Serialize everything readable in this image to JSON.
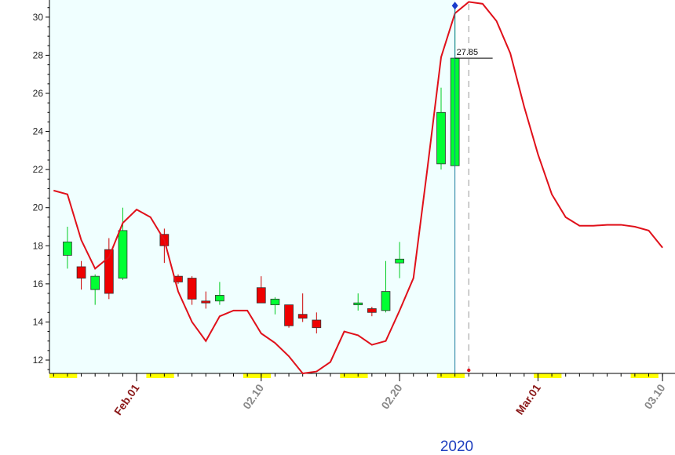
{
  "chart_data": {
    "type": "candlestick",
    "year_label": "2020",
    "ylim": [
      11.3,
      30.9
    ],
    "y_ticks": [
      12,
      14,
      16,
      18,
      20,
      22,
      24,
      26,
      28,
      30
    ],
    "x_tick_labels": [
      {
        "label": "Feb.01",
        "day": 6,
        "color": "#8b1a1a",
        "bold": true
      },
      {
        "label": "02.10",
        "day": 15,
        "color": "#888888",
        "bold": false
      },
      {
        "label": "02.20",
        "day": 25,
        "color": "#888888",
        "bold": false
      },
      {
        "label": "Mar.01",
        "day": 35,
        "color": "#8b1a1a",
        "bold": false
      },
      {
        "label": "03.10",
        "day": 44,
        "color": "#888888",
        "bold": false
      }
    ],
    "x_range_days": [
      0,
      45
    ],
    "last_value_label": "27.85",
    "candles": [
      {
        "day": 1,
        "open": 17.5,
        "high": 19.0,
        "low": 16.8,
        "close": 18.2
      },
      {
        "day": 2,
        "open": 16.9,
        "high": 17.2,
        "low": 15.7,
        "close": 16.3
      },
      {
        "day": 3,
        "open": 15.7,
        "high": 16.5,
        "low": 14.9,
        "close": 16.4
      },
      {
        "day": 4,
        "open": 17.8,
        "high": 18.4,
        "low": 15.2,
        "close": 15.5
      },
      {
        "day": 5,
        "open": 16.3,
        "high": 20.0,
        "low": 16.2,
        "close": 18.8
      },
      {
        "day": 8,
        "open": 18.6,
        "high": 18.9,
        "low": 17.1,
        "close": 18.0
      },
      {
        "day": 9,
        "open": 16.4,
        "high": 16.5,
        "low": 16.0,
        "close": 16.1
      },
      {
        "day": 10,
        "open": 16.3,
        "high": 16.4,
        "low": 14.9,
        "close": 15.2
      },
      {
        "day": 11,
        "open": 15.1,
        "high": 15.6,
        "low": 14.7,
        "close": 15.0
      },
      {
        "day": 12,
        "open": 15.1,
        "high": 16.1,
        "low": 14.9,
        "close": 15.4
      },
      {
        "day": 15,
        "open": 15.8,
        "high": 16.4,
        "low": 15.0,
        "close": 15.0
      },
      {
        "day": 16,
        "open": 14.9,
        "high": 15.3,
        "low": 14.4,
        "close": 15.2
      },
      {
        "day": 17,
        "open": 14.9,
        "high": 14.9,
        "low": 13.7,
        "close": 13.8
      },
      {
        "day": 18,
        "open": 14.4,
        "high": 15.5,
        "low": 14.0,
        "close": 14.2
      },
      {
        "day": 19,
        "open": 14.1,
        "high": 14.5,
        "low": 13.4,
        "close": 13.7
      },
      {
        "day": 22,
        "open": 14.9,
        "high": 15.5,
        "low": 14.6,
        "close": 15.0
      },
      {
        "day": 23,
        "open": 14.7,
        "high": 14.8,
        "low": 14.3,
        "close": 14.5
      },
      {
        "day": 24,
        "open": 14.6,
        "high": 17.2,
        "low": 14.5,
        "close": 15.6
      },
      {
        "day": 25,
        "open": 17.1,
        "high": 18.2,
        "low": 16.3,
        "close": 17.3
      },
      {
        "day": 28,
        "open": 22.3,
        "high": 26.3,
        "low": 22.0,
        "close": 25.0
      },
      {
        "day": 29,
        "open": 22.2,
        "high": 30.6,
        "low": 22.2,
        "close": 27.85
      }
    ],
    "indicator_line": {
      "color": "#e0101a",
      "points": [
        [
          0,
          20.9
        ],
        [
          1,
          20.7
        ],
        [
          2,
          18.3
        ],
        [
          3,
          16.8
        ],
        [
          4,
          17.4
        ],
        [
          5,
          19.2
        ],
        [
          6,
          19.9
        ],
        [
          7,
          19.5
        ],
        [
          8,
          18.3
        ],
        [
          9,
          15.6
        ],
        [
          10,
          14.0
        ],
        [
          11,
          13.0
        ],
        [
          12,
          14.3
        ],
        [
          13,
          14.6
        ],
        [
          14,
          14.6
        ],
        [
          15,
          13.4
        ],
        [
          16,
          12.9
        ],
        [
          17,
          12.2
        ],
        [
          18,
          11.3
        ],
        [
          19,
          11.4
        ],
        [
          20,
          11.9
        ],
        [
          21,
          13.5
        ],
        [
          22,
          13.3
        ],
        [
          23,
          12.8
        ],
        [
          24,
          13.0
        ],
        [
          25,
          14.6
        ],
        [
          26,
          16.3
        ],
        [
          27,
          22.0
        ],
        [
          28,
          27.9
        ],
        [
          29,
          30.2
        ],
        [
          30,
          30.8
        ],
        [
          31,
          30.7
        ],
        [
          32,
          29.8
        ],
        [
          33,
          28.1
        ],
        [
          34,
          25.3
        ],
        [
          35,
          22.8
        ],
        [
          36,
          20.7
        ],
        [
          37,
          19.5
        ],
        [
          38,
          19.05
        ],
        [
          39,
          19.05
        ],
        [
          40,
          19.1
        ],
        [
          41,
          19.1
        ],
        [
          42,
          19.0
        ],
        [
          43,
          18.8
        ],
        [
          44,
          17.9
        ]
      ]
    },
    "colors": {
      "up": "#00ff33",
      "down": "#ee0000",
      "plot_background": "#f0ffff",
      "marker": "#1a3ccc",
      "highlight": "#ffff00"
    },
    "bottom_highlight_days": [
      0,
      7,
      14,
      21,
      28,
      35,
      42
    ],
    "highlight_width_days": 2
  }
}
